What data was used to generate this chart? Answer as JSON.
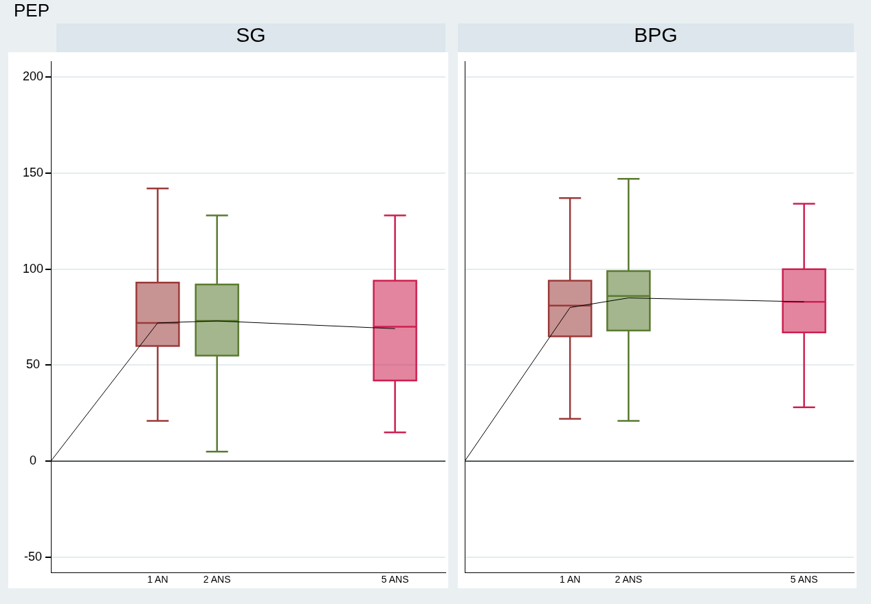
{
  "chart_data": [
    {
      "type": "box",
      "title": "SG",
      "ylabel": "PEP",
      "xlim": [
        -0.8,
        5.85
      ],
      "xticks": [
        {
          "value": 1,
          "label": "1 AN"
        },
        {
          "value": 2,
          "label": "2 ANS"
        },
        {
          "value": 5,
          "label": "5 ANS"
        }
      ],
      "ylim": [
        -58,
        208
      ],
      "yticks": [
        -50,
        0,
        50,
        100,
        150,
        200
      ],
      "grid": "y",
      "ref_lines": [
        {
          "axis": "y",
          "value": 0,
          "color": "#000000"
        }
      ],
      "series": [
        {
          "type": "box",
          "x": [
            1
          ],
          "color": "#9b3a3a",
          "boxes": [
            {
              "low": 21,
              "q1": 60,
              "median": 72,
              "q3": 93,
              "high": 142
            }
          ]
        },
        {
          "type": "box",
          "x": [
            2
          ],
          "color": "#5a7a30",
          "boxes": [
            {
              "low": 5,
              "q1": 55,
              "median": 73,
              "q3": 92,
              "high": 128
            }
          ]
        },
        {
          "type": "box",
          "x": [
            5
          ],
          "color": "#cc2050",
          "boxes": [
            {
              "low": 15,
              "q1": 42,
              "median": 70,
              "q3": 94,
              "high": 128
            }
          ]
        },
        {
          "type": "line",
          "x": [
            -0.8,
            1,
            2,
            5
          ],
          "color": "#000000",
          "values": [
            0,
            72,
            73,
            69
          ]
        }
      ]
    },
    {
      "type": "box",
      "title": "BPG",
      "tick_labels": "x",
      "xlim": [
        -0.8,
        5.85
      ],
      "xticks": [
        {
          "value": 1,
          "label": "1 AN"
        },
        {
          "value": 2,
          "label": "2 ANS"
        },
        {
          "value": 5,
          "label": "5 ANS"
        }
      ],
      "ylim": [
        -58,
        208
      ],
      "yticks": [
        -50,
        0,
        50,
        100,
        150,
        200
      ],
      "grid": "y",
      "ref_lines": [
        {
          "axis": "y",
          "value": 0,
          "color": "#000000"
        }
      ],
      "series": [
        {
          "type": "box",
          "x": [
            1
          ],
          "color": "#9b3a3a",
          "boxes": [
            {
              "low": 22,
              "q1": 65,
              "median": 81,
              "q3": 94,
              "high": 137
            }
          ]
        },
        {
          "type": "box",
          "x": [
            2
          ],
          "color": "#5a7a30",
          "boxes": [
            {
              "low": 21,
              "q1": 68,
              "median": 86,
              "q3": 99,
              "high": 147
            }
          ]
        },
        {
          "type": "box",
          "x": [
            5
          ],
          "color": "#cc2050",
          "boxes": [
            {
              "low": 28,
              "q1": 67,
              "median": 83,
              "q3": 100,
              "high": 134
            }
          ]
        },
        {
          "type": "line",
          "x": [
            -0.8,
            1,
            2,
            5
          ],
          "color": "#000000",
          "values": [
            0,
            80,
            85,
            83
          ]
        }
      ]
    }
  ]
}
